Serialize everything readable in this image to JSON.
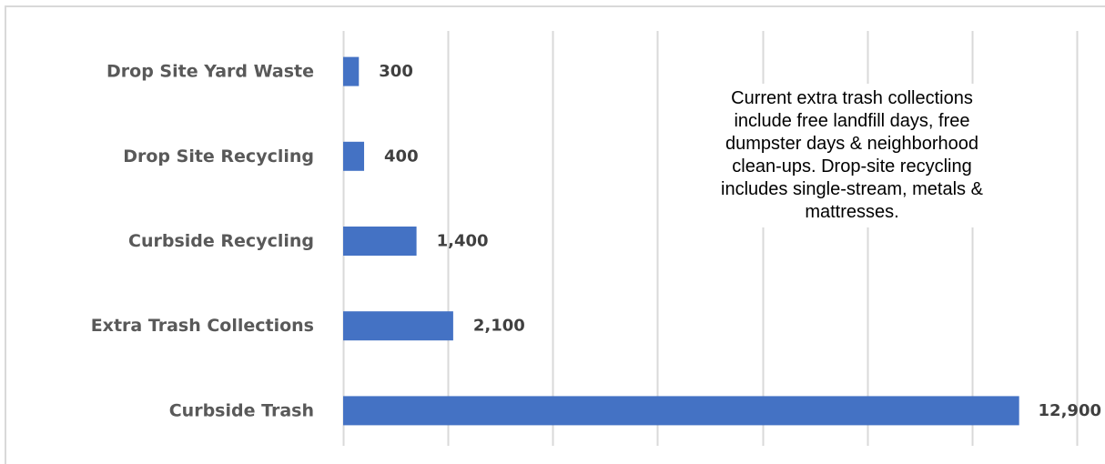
{
  "chart_data": {
    "type": "bar",
    "orientation": "horizontal",
    "categories": [
      "Drop Site Yard Waste",
      "Drop Site Recycling",
      "Curbside Recycling",
      "Extra Trash Collections",
      "Curbside Trash"
    ],
    "values": [
      300,
      400,
      1400,
      2100,
      12900
    ],
    "value_labels": [
      "300",
      "400",
      "1,400",
      "2,100",
      "12,900"
    ],
    "xlim": [
      0,
      14000
    ],
    "grid": "vertical",
    "legend": "none",
    "bar_color": "#4472c4",
    "annotation": "Current extra trash collections include free landfill days, free dumpster days & neighborhood clean-ups.  Drop-site recycling includes single-stream, metals & mattresses."
  },
  "colors": {
    "bar": "#4472c4",
    "category_text": "#595959",
    "value_text": "#404040",
    "gridline": "#d9d9d9"
  }
}
